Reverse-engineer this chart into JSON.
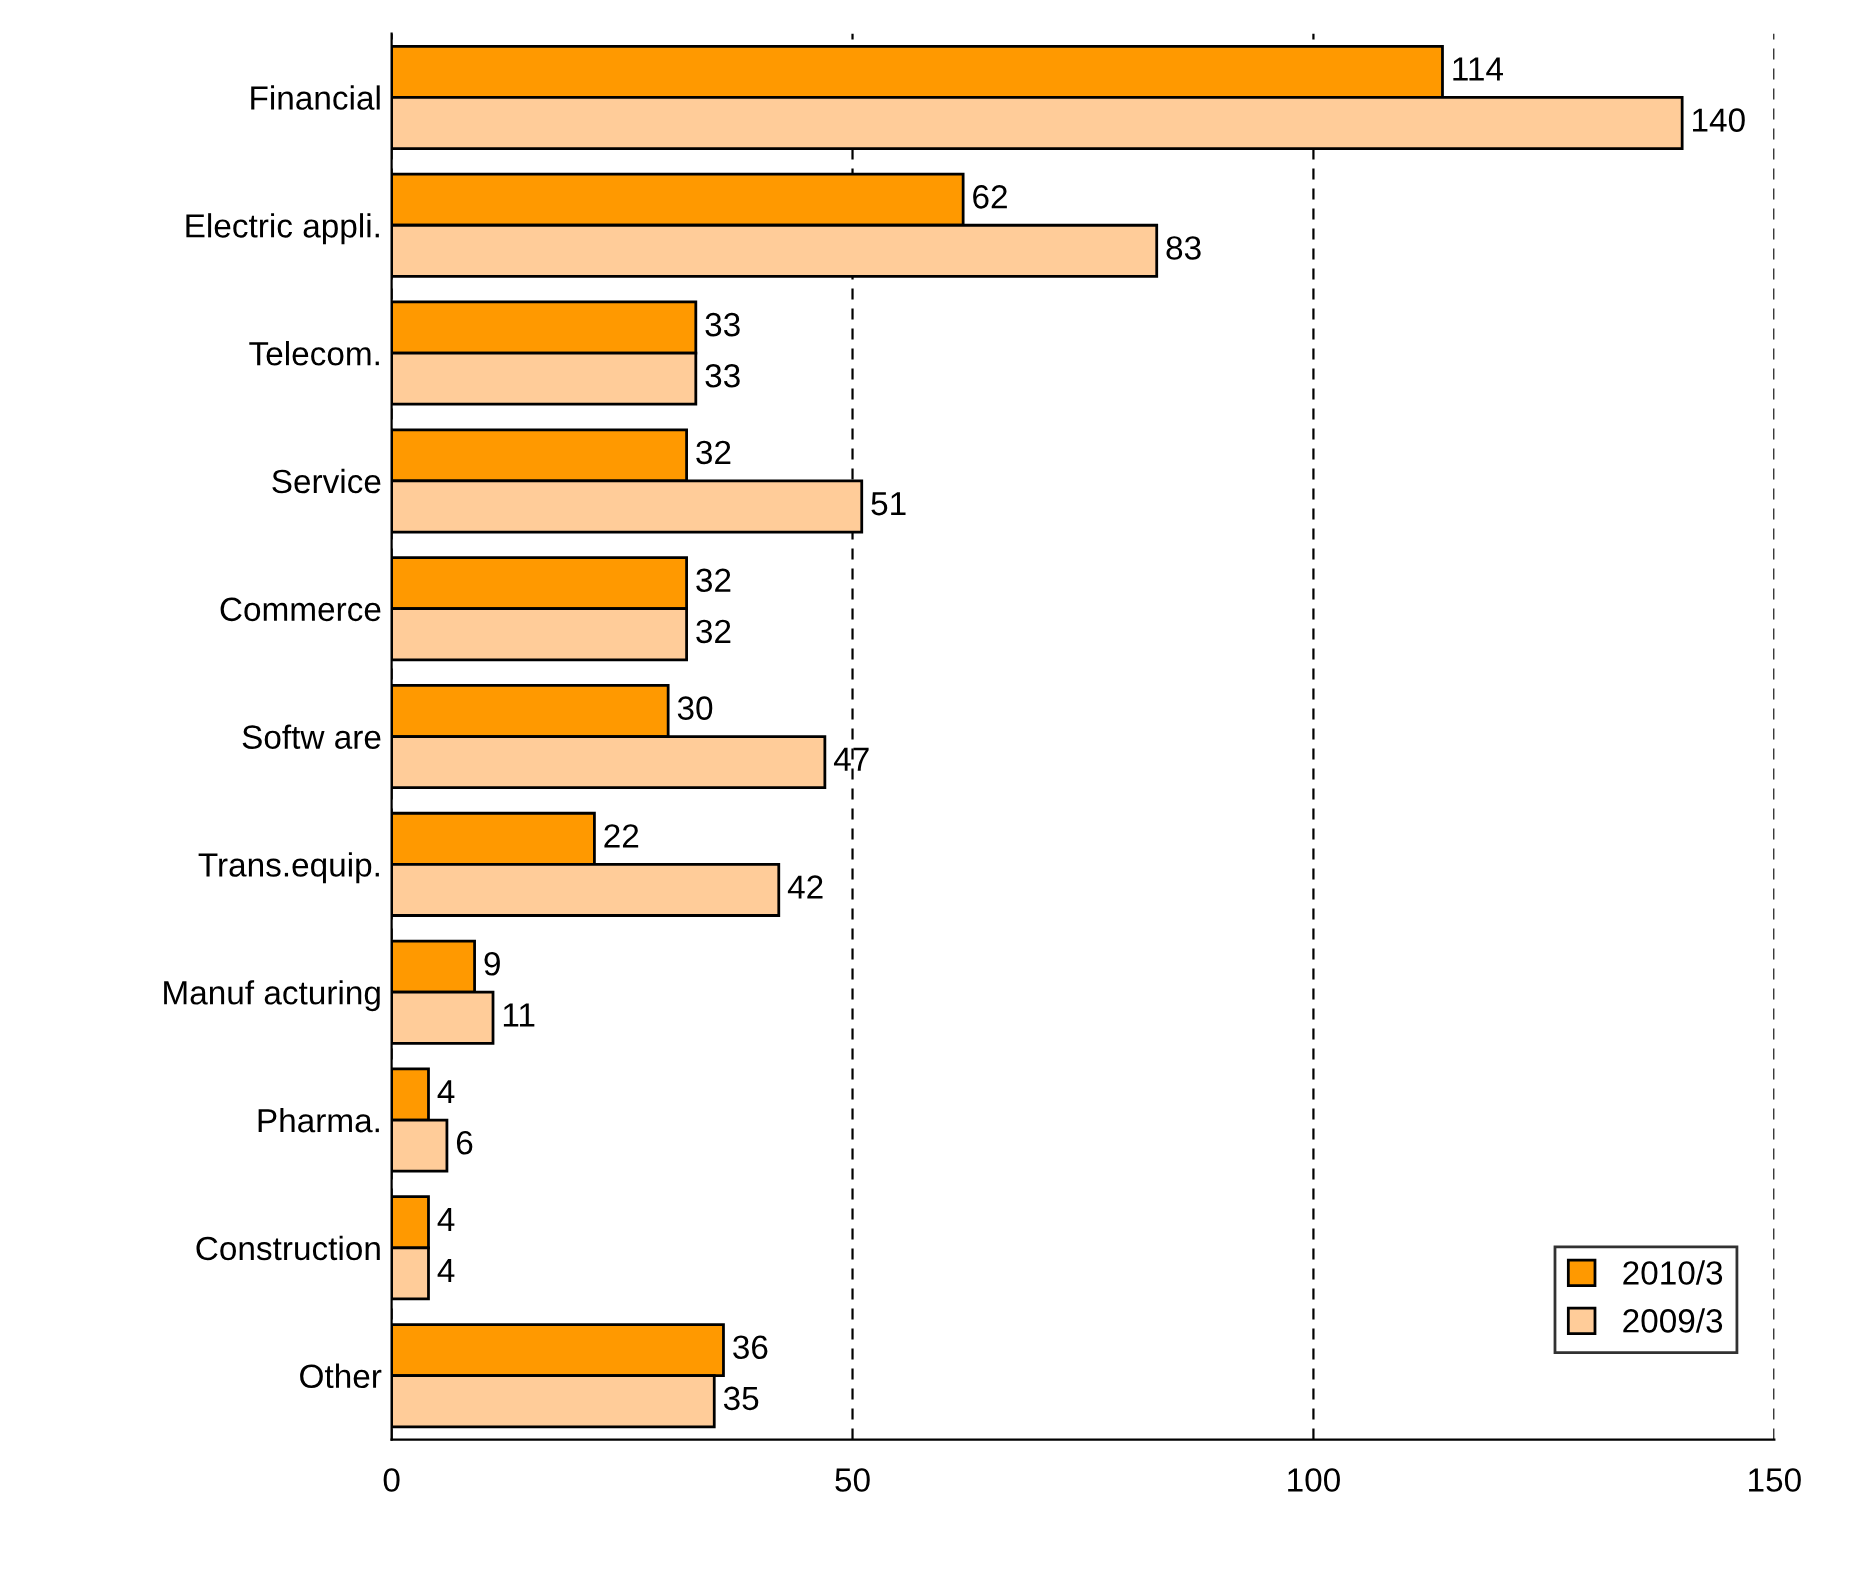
{
  "chart_data": {
    "type": "bar",
    "orientation": "horizontal",
    "categories": [
      "Financial",
      "Electric appli.",
      "Telecom.",
      "Service",
      "Commerce",
      "Softw are",
      "Trans.equip.",
      "Manuf acturing",
      "Pharma.",
      "Construction",
      "Other"
    ],
    "series": [
      {
        "name": "2010/3",
        "color": "#ff9900",
        "values": [
          114,
          62,
          33,
          32,
          32,
          30,
          22,
          9,
          4,
          4,
          36
        ]
      },
      {
        "name": "2009/3",
        "color": "#ffcc99",
        "values": [
          140,
          83,
          33,
          51,
          32,
          47,
          42,
          11,
          6,
          4,
          35
        ]
      }
    ],
    "xlim": [
      0,
      150
    ],
    "xticks": [
      0,
      50,
      100,
      150
    ],
    "grid": "x",
    "legend": "bottom right",
    "data_labels": true
  }
}
